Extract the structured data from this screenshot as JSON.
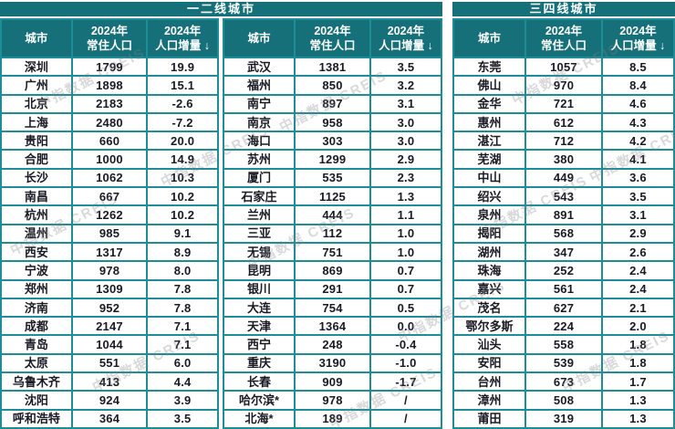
{
  "watermark": "中指数据 CREIS",
  "colors": {
    "header_teal": "#16707a",
    "border_teal": "#1d8d97",
    "text_dark": "#1a1a24",
    "header_text": "#ffffff"
  },
  "groups": [
    {
      "label": "一二线城市",
      "tables": [
        {
          "col_city": "城市",
          "col_pop": "2024年\n常住人口",
          "col_inc": "2024年\n人口增量 ↓",
          "rows": [
            [
              "深圳",
              "1799",
              "19.9"
            ],
            [
              "广州",
              "1898",
              "15.1"
            ],
            [
              "北京",
              "2183",
              "-2.6"
            ],
            [
              "上海",
              "2480",
              "-7.2"
            ],
            [
              "贵阳",
              "660",
              "20.0"
            ],
            [
              "合肥",
              "1000",
              "14.9"
            ],
            [
              "长沙",
              "1062",
              "10.3"
            ],
            [
              "南昌",
              "667",
              "10.2"
            ],
            [
              "杭州",
              "1262",
              "10.2"
            ],
            [
              "温州",
              "985",
              "9.1"
            ],
            [
              "西安",
              "1317",
              "8.9"
            ],
            [
              "宁波",
              "978",
              "8.0"
            ],
            [
              "郑州",
              "1309",
              "7.8"
            ],
            [
              "济南",
              "952",
              "7.8"
            ],
            [
              "成都",
              "2147",
              "7.1"
            ],
            [
              "青岛",
              "1044",
              "7.1"
            ],
            [
              "太原",
              "551",
              "6.0"
            ],
            [
              "乌鲁木齐",
              "413",
              "4.4"
            ],
            [
              "沈阳",
              "924",
              "3.9"
            ],
            [
              "呼和浩特",
              "364",
              "3.5"
            ]
          ]
        },
        {
          "col_city": "城市",
          "col_pop": "2024年\n常住人口",
          "col_inc": "2024年\n人口增量 ↓",
          "rows": [
            [
              "武汉",
              "1381",
              "3.5"
            ],
            [
              "福州",
              "850",
              "3.2"
            ],
            [
              "南宁",
              "897",
              "3.1"
            ],
            [
              "南京",
              "958",
              "3.0"
            ],
            [
              "海口",
              "303",
              "3.0"
            ],
            [
              "苏州",
              "1299",
              "2.9"
            ],
            [
              "厦门",
              "535",
              "2.3"
            ],
            [
              "石家庄",
              "1125",
              "1.3"
            ],
            [
              "兰州",
              "444",
              "1.1"
            ],
            [
              "三亚",
              "112",
              "1.0"
            ],
            [
              "无锡",
              "751",
              "1.0"
            ],
            [
              "昆明",
              "869",
              "0.7"
            ],
            [
              "银川",
              "291",
              "0.7"
            ],
            [
              "大连",
              "754",
              "0.5"
            ],
            [
              "天津",
              "1364",
              "0.0"
            ],
            [
              "西宁",
              "248",
              "-0.4"
            ],
            [
              "重庆",
              "3190",
              "-1.0"
            ],
            [
              "长春",
              "909",
              "-1.7"
            ],
            [
              "哈尔滨*",
              "978",
              "/"
            ],
            [
              "北海*",
              "189",
              "/"
            ]
          ]
        }
      ]
    },
    {
      "label": "三四线城市",
      "tables": [
        {
          "col_city": "城市",
          "col_pop": "2024年\n常住人口",
          "col_inc": "2024年\n人口增量 ↓",
          "rows": [
            [
              "东莞",
              "1057",
              "8.5"
            ],
            [
              "佛山",
              "970",
              "8.4"
            ],
            [
              "金华",
              "721",
              "4.6"
            ],
            [
              "惠州",
              "612",
              "4.3"
            ],
            [
              "湛江",
              "712",
              "4.2"
            ],
            [
              "芜湖",
              "380",
              "4.1"
            ],
            [
              "中山",
              "449",
              "3.6"
            ],
            [
              "绍兴",
              "543",
              "3.5"
            ],
            [
              "泉州",
              "891",
              "3.1"
            ],
            [
              "揭阳",
              "568",
              "2.9"
            ],
            [
              "湖州",
              "347",
              "2.6"
            ],
            [
              "珠海",
              "252",
              "2.4"
            ],
            [
              "嘉兴",
              "561",
              "2.4"
            ],
            [
              "茂名",
              "627",
              "2.1"
            ],
            [
              "鄂尔多斯",
              "224",
              "2.0"
            ],
            [
              "汕头",
              "558",
              "1.8"
            ],
            [
              "安阳",
              "539",
              "1.8"
            ],
            [
              "台州",
              "673",
              "1.7"
            ],
            [
              "漳州",
              "508",
              "1.3"
            ],
            [
              "莆田",
              "319",
              "1.3"
            ]
          ]
        }
      ]
    }
  ]
}
